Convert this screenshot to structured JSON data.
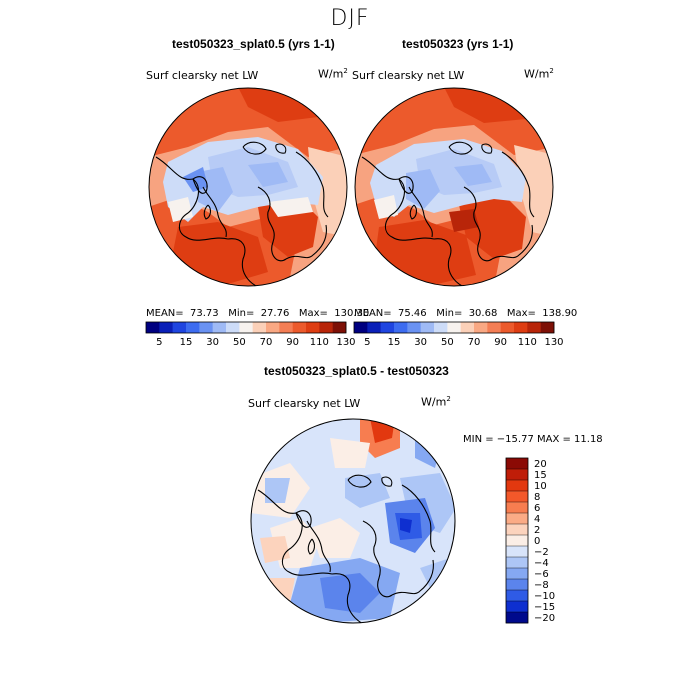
{
  "season": "DJF",
  "chart_data": [
    {
      "type": "heatmap",
      "projection": "north polar stereographic",
      "case_title": "test050323_splat0.5 (yrs 1-1)",
      "variable": "Surf clearsky net LW",
      "units_base": "W/m",
      "units_exp": "2",
      "mean": "73.73",
      "min": "27.76",
      "max": "130.30",
      "mean_label": "MEAN=",
      "min_label": "Min=",
      "max_label": "Max=",
      "colorbar_ticks": [
        "5",
        "15",
        "30",
        "50",
        "70",
        "90",
        "110",
        "130"
      ],
      "colorbar_levels": [
        "5",
        "10",
        "15",
        "20",
        "30",
        "40",
        "50",
        "60",
        "70",
        "80",
        "90",
        "100",
        "110",
        "120",
        "130"
      ]
    },
    {
      "type": "heatmap",
      "projection": "north polar stereographic",
      "case_title": "test050323 (yrs 1-1)",
      "variable": "Surf clearsky net LW",
      "units_base": "W/m",
      "units_exp": "2",
      "mean": "75.46",
      "min": "30.68",
      "max": "138.90",
      "mean_label": "MEAN=",
      "min_label": "Min=",
      "max_label": "Max=",
      "colorbar_ticks": [
        "5",
        "15",
        "30",
        "50",
        "70",
        "90",
        "110",
        "130"
      ],
      "colorbar_levels": [
        "5",
        "10",
        "15",
        "20",
        "30",
        "40",
        "50",
        "60",
        "70",
        "80",
        "90",
        "100",
        "110",
        "120",
        "130"
      ]
    },
    {
      "type": "heatmap",
      "projection": "north polar stereographic",
      "case_title": "test050323_splat0.5 - test050323",
      "variable": "Surf clearsky net LW",
      "units_base": "W/m",
      "units_exp": "2",
      "minmax_text": "MIN = −15.77  MAX =  11.18",
      "colorbar_ticks": [
        "20",
        "15",
        "10",
        "8",
        "6",
        "4",
        "2",
        "0",
        "−2",
        "−4",
        "−6",
        "−8",
        "−10",
        "−15",
        "−20"
      ]
    }
  ],
  "colors": {
    "abs_scale": [
      "#000080",
      "#0a1fb8",
      "#1f45e0",
      "#3d6cf0",
      "#6a92f2",
      "#9fbaf5",
      "#cddcf8",
      "#f7f2ee",
      "#fbd0b8",
      "#f9a883",
      "#f47e55",
      "#ec5a2c",
      "#de3d12",
      "#b82509",
      "#7d1006"
    ],
    "diff_scale": [
      "#8b0a05",
      "#bf1d08",
      "#e2380f",
      "#f3582a",
      "#f77d50",
      "#fbab86",
      "#fcd3bd",
      "#fbeee6",
      "#d8e4fa",
      "#adc6f6",
      "#85a8f2",
      "#5b84ec",
      "#2f5be6",
      "#0e2fd0",
      "#000a8c"
    ]
  }
}
